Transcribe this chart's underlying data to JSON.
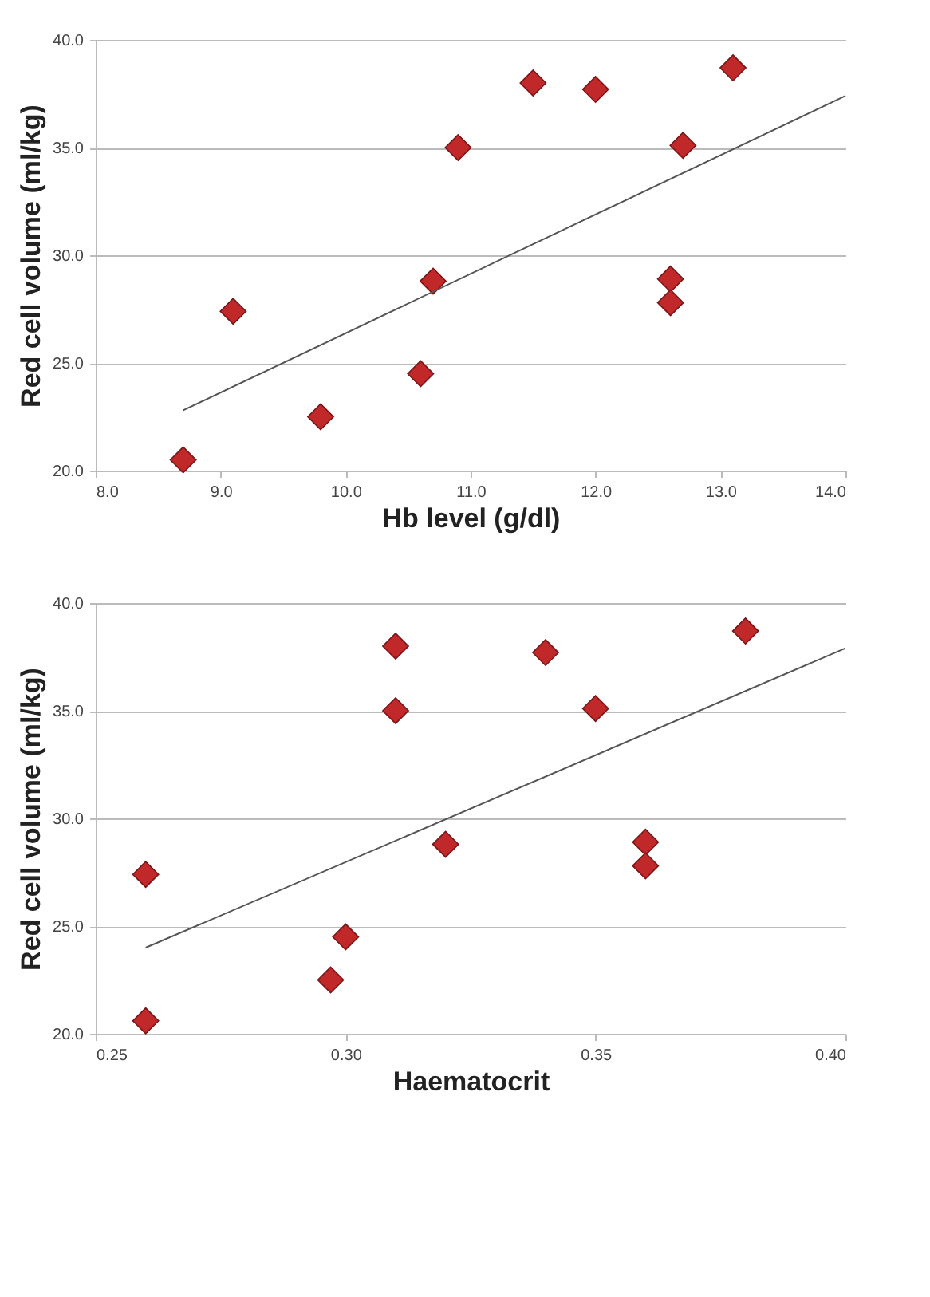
{
  "chart_data": [
    {
      "type": "scatter",
      "xlabel": "Hb level (g/dl)",
      "ylabel": "Red cell volume (ml/kg)",
      "xlim": [
        8.0,
        14.0
      ],
      "xticks": [
        {
          "value": 8,
          "label": "8.0"
        },
        {
          "value": 9,
          "label": "9.0"
        },
        {
          "value": 10,
          "label": "10.0"
        },
        {
          "value": 11,
          "label": "11.0"
        },
        {
          "value": 12,
          "label": "12.0"
        },
        {
          "value": 13,
          "label": "13.0"
        },
        {
          "value": 14,
          "label": "14.0"
        }
      ],
      "ylim": [
        20.0,
        40.0
      ],
      "yticks": [
        {
          "value": 20,
          "label": "20.0"
        },
        {
          "value": 25,
          "label": "25.0"
        },
        {
          "value": 30,
          "label": "30.0"
        },
        {
          "value": 35,
          "label": "35.0"
        },
        {
          "value": 40,
          "label": "40.0"
        }
      ],
      "grid": "y",
      "marker": "diamond",
      "series": [
        {
          "type": "scatter",
          "color": "#c0282a",
          "x": [
            8.7,
            9.1,
            9.8,
            10.6,
            10.7,
            10.9,
            11.5,
            12.0,
            12.6,
            12.6,
            12.7,
            13.1
          ],
          "values": [
            20.5,
            27.4,
            22.5,
            24.5,
            28.8,
            35.0,
            38.0,
            37.7,
            28.9,
            27.8,
            35.1,
            38.7
          ]
        },
        {
          "type": "line",
          "color": "#555555",
          "marker": "none",
          "x": [
            8.7,
            14.0
          ],
          "values": [
            22.8,
            37.4
          ]
        }
      ]
    },
    {
      "type": "scatter",
      "xlabel": "Haematocrit",
      "ylabel": "Red cell volume (ml/kg)",
      "xlim": [
        0.25,
        0.4
      ],
      "xticks": [
        0.25,
        {
          "value": 0.3,
          "label": "0.30"
        },
        0.35,
        {
          "value": 0.4,
          "label": "0.40"
        }
      ],
      "ylim": [
        20.0,
        40.0
      ],
      "yticks": [
        {
          "value": 20,
          "label": "20.0"
        },
        {
          "value": 25,
          "label": "25.0"
        },
        {
          "value": 30,
          "label": "30.0"
        },
        {
          "value": 35,
          "label": "35.0"
        },
        {
          "value": 40,
          "label": "40.0"
        }
      ],
      "grid": "y",
      "marker": "diamond",
      "series": [
        {
          "type": "scatter",
          "color": "#c0282a",
          "x": [
            0.26,
            0.26,
            0.297,
            0.3,
            0.31,
            0.31,
            0.32,
            0.34,
            0.35,
            0.36,
            0.36,
            0.38
          ],
          "values": [
            27.4,
            20.6,
            22.5,
            24.5,
            38.0,
            35.0,
            28.8,
            37.7,
            35.1,
            28.9,
            27.8,
            38.7
          ]
        },
        {
          "type": "line",
          "color": "#555555",
          "marker": "none",
          "x": [
            0.26,
            0.4
          ],
          "values": [
            24.0,
            37.9
          ]
        }
      ]
    }
  ]
}
